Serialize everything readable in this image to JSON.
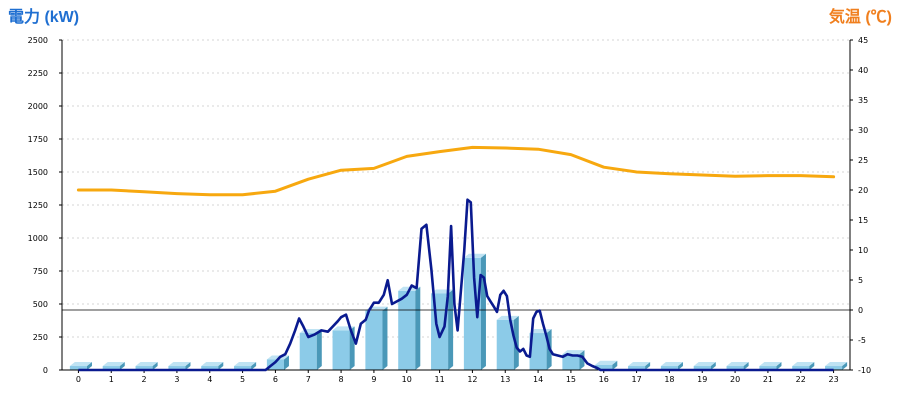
{
  "chart_data": {
    "type": "bar",
    "title": "",
    "colors": {
      "power_label": "#1f6fd1",
      "temp_label": "#f07f1e",
      "bar_front": "#8ccbe8",
      "bar_side": "#4a98b8",
      "bar_top": "#bfe3f3",
      "power_line": "#0a1a8f",
      "temp_line": "#f7a80f",
      "grid": "#c8c8c8"
    },
    "y_left": {
      "label": "電力 (kW)",
      "range": [
        0,
        2500
      ],
      "ticks": [
        0,
        250,
        500,
        750,
        1000,
        1250,
        1500,
        1750,
        2000,
        2250,
        2500
      ]
    },
    "y_right": {
      "label": "気温 (℃)",
      "range": [
        -10,
        45
      ],
      "ticks": [
        -10,
        -5,
        0,
        5,
        10,
        15,
        20,
        25,
        30,
        35,
        40,
        45
      ]
    },
    "x": {
      "categories": [
        "0",
        "1",
        "2",
        "3",
        "4",
        "5",
        "6",
        "7",
        "8",
        "9",
        "10",
        "11",
        "12",
        "13",
        "14",
        "15",
        "16",
        "17",
        "18",
        "19",
        "20",
        "21",
        "22",
        "23"
      ]
    },
    "grid": true,
    "series": [
      {
        "kind": "bar",
        "axis": "left",
        "values": [
          30,
          30,
          30,
          30,
          30,
          30,
          80,
          280,
          300,
          450,
          600,
          580,
          850,
          380,
          280,
          120,
          40,
          30,
          30,
          30,
          30,
          30,
          30,
          30
        ]
      },
      {
        "kind": "line",
        "axis": "left",
        "points": [
          [
            0,
            0
          ],
          [
            1,
            0
          ],
          [
            2,
            0
          ],
          [
            3,
            0
          ],
          [
            4,
            0
          ],
          [
            5,
            0
          ],
          [
            5.7,
            0
          ],
          [
            5.85,
            30
          ],
          [
            6,
            60
          ],
          [
            6.15,
            100
          ],
          [
            6.3,
            120
          ],
          [
            6.45,
            200
          ],
          [
            6.6,
            300
          ],
          [
            6.72,
            390
          ],
          [
            6.85,
            330
          ],
          [
            7,
            250
          ],
          [
            7.2,
            270
          ],
          [
            7.4,
            300
          ],
          [
            7.6,
            290
          ],
          [
            7.75,
            330
          ],
          [
            7.9,
            370
          ],
          [
            8,
            400
          ],
          [
            8.15,
            420
          ],
          [
            8.3,
            300
          ],
          [
            8.45,
            200
          ],
          [
            8.6,
            350
          ],
          [
            8.75,
            380
          ],
          [
            8.85,
            450
          ],
          [
            9,
            510
          ],
          [
            9.15,
            510
          ],
          [
            9.3,
            570
          ],
          [
            9.42,
            680
          ],
          [
            9.55,
            500
          ],
          [
            9.7,
            520
          ],
          [
            9.85,
            540
          ],
          [
            10,
            570
          ],
          [
            10.15,
            640
          ],
          [
            10.3,
            620
          ],
          [
            10.45,
            1070
          ],
          [
            10.6,
            1100
          ],
          [
            10.75,
            760
          ],
          [
            10.9,
            350
          ],
          [
            11,
            250
          ],
          [
            11.15,
            330
          ],
          [
            11.25,
            560
          ],
          [
            11.35,
            1090
          ],
          [
            11.45,
            500
          ],
          [
            11.55,
            300
          ],
          [
            11.65,
            600
          ],
          [
            11.75,
            900
          ],
          [
            11.85,
            1290
          ],
          [
            11.95,
            1270
          ],
          [
            12.05,
            700
          ],
          [
            12.15,
            400
          ],
          [
            12.25,
            720
          ],
          [
            12.35,
            700
          ],
          [
            12.45,
            560
          ],
          [
            12.55,
            520
          ],
          [
            12.65,
            480
          ],
          [
            12.75,
            440
          ],
          [
            12.85,
            570
          ],
          [
            12.95,
            600
          ],
          [
            13.05,
            560
          ],
          [
            13.15,
            380
          ],
          [
            13.25,
            260
          ],
          [
            13.35,
            170
          ],
          [
            13.45,
            140
          ],
          [
            13.55,
            160
          ],
          [
            13.65,
            110
          ],
          [
            13.75,
            100
          ],
          [
            13.85,
            390
          ],
          [
            13.95,
            440
          ],
          [
            14.05,
            450
          ],
          [
            14.15,
            350
          ],
          [
            14.25,
            260
          ],
          [
            14.35,
            160
          ],
          [
            14.45,
            120
          ],
          [
            14.6,
            110
          ],
          [
            14.75,
            100
          ],
          [
            14.9,
            120
          ],
          [
            15.05,
            110
          ],
          [
            15.2,
            110
          ],
          [
            15.35,
            100
          ],
          [
            15.5,
            50
          ],
          [
            15.65,
            30
          ],
          [
            15.8,
            15
          ],
          [
            15.9,
            0
          ],
          [
            16,
            0
          ],
          [
            17,
            0
          ],
          [
            18,
            0
          ],
          [
            19,
            0
          ],
          [
            20,
            0
          ],
          [
            21,
            0
          ],
          [
            22,
            0
          ],
          [
            23,
            0
          ]
        ]
      },
      {
        "kind": "line",
        "axis": "right",
        "points": [
          [
            0,
            20
          ],
          [
            1,
            20
          ],
          [
            2,
            19.7
          ],
          [
            3,
            19.4
          ],
          [
            4,
            19.2
          ],
          [
            5,
            19.2
          ],
          [
            6,
            19.8
          ],
          [
            7,
            21.8
          ],
          [
            8,
            23.3
          ],
          [
            9,
            23.6
          ],
          [
            10,
            25.6
          ],
          [
            11,
            26.4
          ],
          [
            12,
            27.1
          ],
          [
            13,
            27
          ],
          [
            14,
            26.8
          ],
          [
            15,
            25.9
          ],
          [
            16,
            23.8
          ],
          [
            17,
            23
          ],
          [
            18,
            22.7
          ],
          [
            19,
            22.5
          ],
          [
            20,
            22.3
          ],
          [
            21,
            22.4
          ],
          [
            22,
            22.4
          ],
          [
            23,
            22.2
          ]
        ]
      }
    ]
  }
}
